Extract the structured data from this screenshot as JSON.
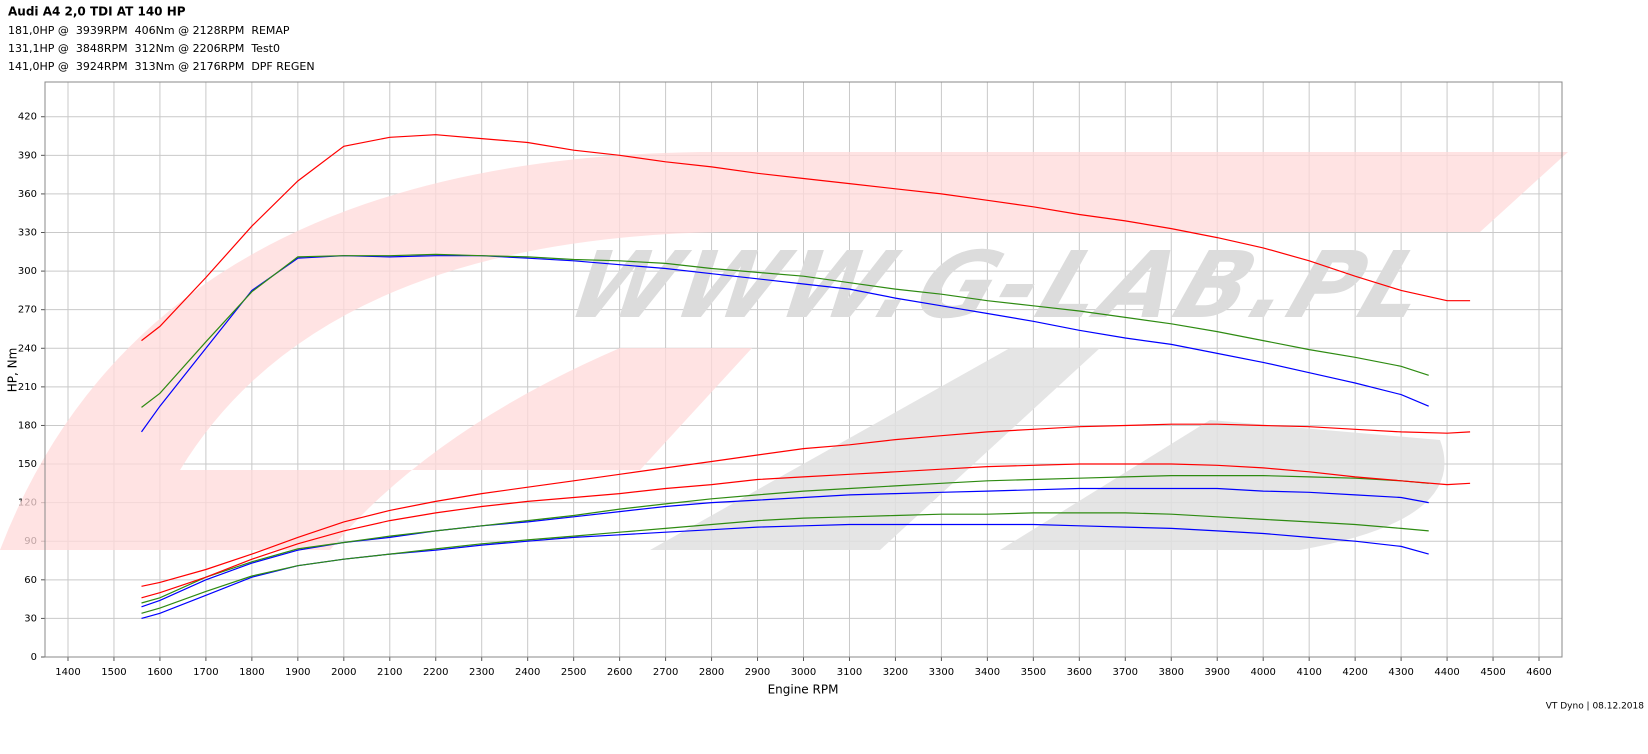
{
  "chart_data": {
    "type": "line",
    "title": "Audi A4 2,0 TDI AT 140 HP",
    "xlabel": "Engine RPM",
    "ylabel": "HP, Nm",
    "footer": "VT Dyno | 08.12.2018",
    "watermark": "WWW.G-LAB.PL",
    "xlim": [
      1350,
      4650
    ],
    "ylim": [
      0,
      447
    ],
    "xticks": [
      1400,
      1500,
      1600,
      1700,
      1800,
      1900,
      2000,
      2100,
      2200,
      2300,
      2400,
      2500,
      2600,
      2700,
      2800,
      2900,
      3000,
      3100,
      3200,
      3300,
      3400,
      3500,
      3600,
      3700,
      3800,
      3900,
      4000,
      4100,
      4200,
      4300,
      4400,
      4500,
      4600
    ],
    "yticks": [
      0,
      30,
      60,
      90,
      120,
      150,
      180,
      210,
      240,
      270,
      300,
      330,
      360,
      390,
      420
    ],
    "grid": true,
    "series": [
      {
        "name": "181,0HP @  3939RPM  406Nm @ 2128RPM  REMAP",
        "color": "#ff0000",
        "x": [
          1560,
          1600,
          1700,
          1800,
          1900,
          2000,
          2100,
          2200,
          2300,
          2400,
          2500,
          2600,
          2700,
          2800,
          2900,
          3000,
          3100,
          3200,
          3300,
          3400,
          3500,
          3600,
          3700,
          3800,
          3900,
          4000,
          4100,
          4200,
          4300,
          4400,
          4450
        ],
        "values": [
          55,
          58,
          68,
          80,
          93,
          105,
          114,
          121,
          127,
          132,
          137,
          142,
          147,
          152,
          157,
          162,
          165,
          169,
          172,
          175,
          177,
          179,
          180,
          181,
          181,
          180,
          179,
          177,
          175,
          174,
          175
        ]
      },
      {
        "name": "131,1HP @  3848RPM  312Nm @ 2206RPM  Test0",
        "color": "#0000ff",
        "x": [
          1560,
          1600,
          1700,
          1800,
          1900,
          2000,
          2100,
          2200,
          2300,
          2400,
          2500,
          2600,
          2700,
          2800,
          2900,
          3000,
          3100,
          3200,
          3300,
          3400,
          3500,
          3600,
          3700,
          3800,
          3900,
          4000,
          4100,
          4200,
          4300,
          4360
        ],
        "values": [
          39,
          44,
          60,
          73,
          83,
          89,
          93,
          98,
          102,
          105,
          109,
          113,
          117,
          120,
          122,
          124,
          126,
          127,
          128,
          129,
          130,
          131,
          131,
          131,
          131,
          129,
          128,
          126,
          124,
          120
        ]
      },
      {
        "name": "141,0HP @  3924RPM  313Nm @ 2176RPM  DPF REGEN",
        "color": "#2e8b12",
        "x": [
          1560,
          1600,
          1700,
          1800,
          1900,
          2000,
          2100,
          2200,
          2300,
          2400,
          2500,
          2600,
          2700,
          2800,
          2900,
          3000,
          3100,
          3200,
          3300,
          3400,
          3500,
          3600,
          3700,
          3800,
          3900,
          4000,
          4100,
          4200,
          4300,
          4360
        ],
        "values": [
          42,
          46,
          62,
          74,
          84,
          89,
          94,
          98,
          102,
          106,
          110,
          115,
          119,
          123,
          126,
          129,
          131,
          133,
          135,
          137,
          138,
          139,
          140,
          141,
          141,
          141,
          140,
          139,
          137,
          135
        ]
      },
      {
        "color": "#ff0000",
        "x": [
          1560,
          1600,
          1700,
          1800,
          1900,
          2000,
          2100,
          2200,
          2300,
          2400,
          2500,
          2600,
          2700,
          2800,
          2900,
          3000,
          3100,
          3200,
          3300,
          3400,
          3500,
          3600,
          3700,
          3800,
          3900,
          4000,
          4100,
          4200,
          4300,
          4400,
          4450
        ],
        "values": [
          246,
          257,
          295,
          335,
          370,
          397,
          404,
          406,
          403,
          400,
          394,
          390,
          385,
          381,
          376,
          372,
          368,
          364,
          360,
          355,
          350,
          344,
          339,
          333,
          326,
          318,
          308,
          296,
          285,
          277,
          277
        ]
      },
      {
        "color": "#0000ff",
        "x": [
          1560,
          1600,
          1700,
          1800,
          1900,
          2000,
          2100,
          2200,
          2300,
          2400,
          2500,
          2600,
          2700,
          2800,
          2900,
          3000,
          3100,
          3200,
          3300,
          3400,
          3500,
          3600,
          3700,
          3800,
          3900,
          4000,
          4100,
          4200,
          4300,
          4360
        ],
        "values": [
          175,
          195,
          240,
          285,
          310,
          312,
          311,
          312,
          312,
          310,
          308,
          305,
          302,
          298,
          294,
          290,
          286,
          279,
          273,
          267,
          261,
          254,
          248,
          243,
          236,
          229,
          221,
          213,
          204,
          195
        ]
      },
      {
        "color": "#2e8b12",
        "x": [
          1560,
          1600,
          1700,
          1800,
          1900,
          2000,
          2100,
          2200,
          2300,
          2400,
          2500,
          2600,
          2700,
          2800,
          2900,
          3000,
          3100,
          3200,
          3300,
          3400,
          3500,
          3600,
          3700,
          3800,
          3900,
          4000,
          4100,
          4200,
          4300,
          4360
        ],
        "values": [
          194,
          205,
          245,
          284,
          311,
          312,
          312,
          313,
          312,
          311,
          309,
          308,
          306,
          302,
          299,
          296,
          291,
          286,
          282,
          277,
          273,
          269,
          264,
          259,
          253,
          246,
          239,
          233,
          226,
          219
        ]
      },
      {
        "color": "#ff0000",
        "x": [
          1560,
          1600,
          1700,
          1800,
          1900,
          2000,
          2100,
          2200,
          2300,
          2400,
          2500,
          2600,
          2700,
          2800,
          2900,
          3000,
          3100,
          3200,
          3300,
          3400,
          3500,
          3600,
          3700,
          3800,
          3900,
          4000,
          4100,
          4200,
          4300,
          4400,
          4450
        ],
        "values": [
          46,
          50,
          62,
          76,
          88,
          98,
          106,
          112,
          117,
          121,
          124,
          127,
          131,
          134,
          138,
          140,
          142,
          144,
          146,
          148,
          149,
          150,
          150,
          150,
          149,
          147,
          144,
          140,
          137,
          134,
          135
        ]
      },
      {
        "color": "#0000ff",
        "x": [
          1560,
          1600,
          1700,
          1800,
          1900,
          2000,
          2100,
          2200,
          2300,
          2400,
          2500,
          2600,
          2700,
          2800,
          2900,
          3000,
          3100,
          3200,
          3300,
          3400,
          3500,
          3600,
          3700,
          3800,
          3900,
          4000,
          4100,
          4200,
          4300,
          4360
        ],
        "values": [
          30,
          34,
          48,
          62,
          71,
          76,
          80,
          83,
          87,
          90,
          93,
          95,
          97,
          99,
          101,
          102,
          103,
          103,
          103,
          103,
          103,
          102,
          101,
          100,
          98,
          96,
          93,
          90,
          86,
          80
        ]
      },
      {
        "color": "#2e8b12",
        "x": [
          1560,
          1600,
          1700,
          1800,
          1900,
          2000,
          2100,
          2200,
          2300,
          2400,
          2500,
          2600,
          2700,
          2800,
          2900,
          3000,
          3100,
          3200,
          3300,
          3400,
          3500,
          3600,
          3700,
          3800,
          3900,
          4000,
          4100,
          4200,
          4300,
          4360
        ],
        "values": [
          34,
          38,
          51,
          63,
          71,
          76,
          80,
          84,
          88,
          91,
          94,
          97,
          100,
          103,
          106,
          108,
          109,
          110,
          111,
          111,
          112,
          112,
          112,
          111,
          109,
          107,
          105,
          103,
          100,
          98
        ]
      }
    ]
  }
}
